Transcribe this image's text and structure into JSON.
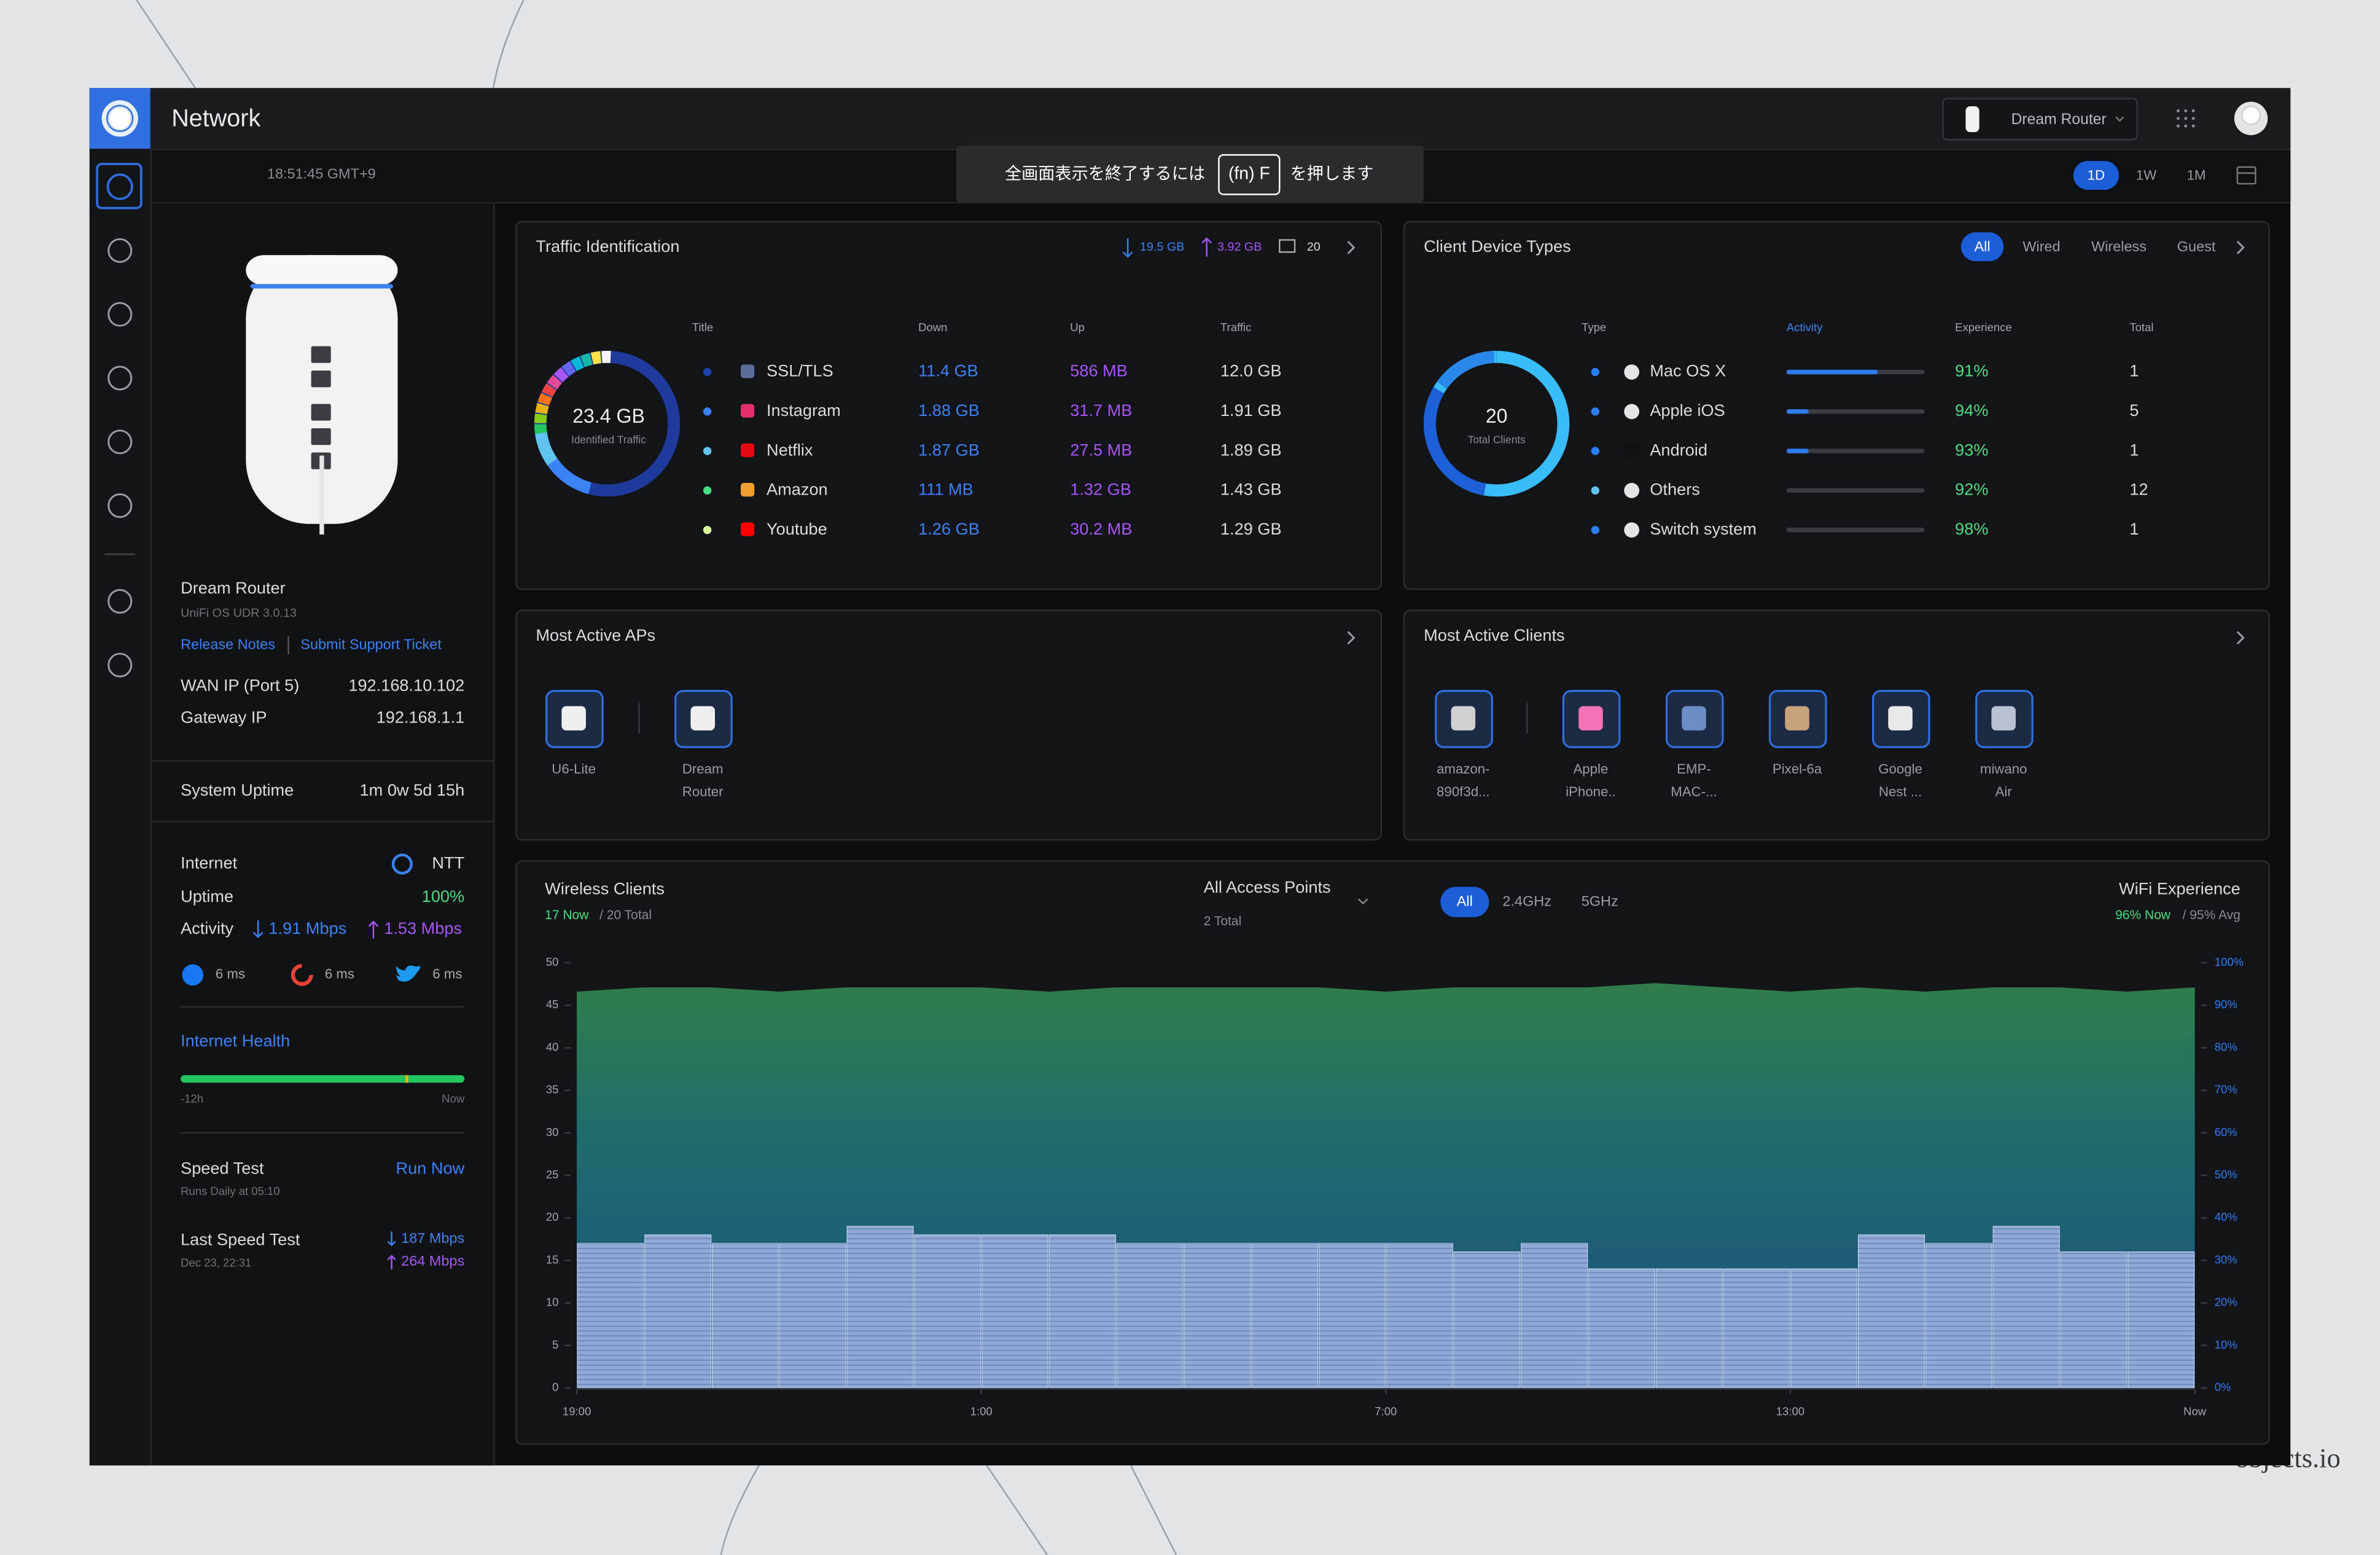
{
  "header": {
    "app_title": "Network",
    "device": "Dream Router",
    "clock": "18:51:45 GMT+9",
    "notice": {
      "before": "全画面表示を終了するには",
      "key": "(fn) F",
      "after": "を押します"
    },
    "ranges": [
      "1D",
      "1W",
      "1M"
    ]
  },
  "device": {
    "name": "Dream Router",
    "os": "UniFi OS UDR 3.0.13",
    "links": [
      "Release Notes",
      "Submit Support Ticket"
    ],
    "wan_label": "WAN IP (Port 5)",
    "wan_ip": "192.168.10.102",
    "gateway_label": "Gateway IP",
    "gateway_ip": "192.168.1.1",
    "uptime_label": "System Uptime",
    "uptime": "1m 0w 5d 15h"
  },
  "internet": {
    "label": "Internet",
    "isp": "NTT",
    "uptime_label": "Uptime",
    "uptime": "100%",
    "activity_label": "Activity",
    "down": "1.91 Mbps",
    "up": "1.53 Mbps",
    "latency": [
      "6 ms",
      "6 ms",
      "6 ms"
    ],
    "health_label": "Internet Health",
    "health_start": "-12h",
    "health_end": "Now",
    "speed_test_label": "Speed Test",
    "run_now": "Run Now",
    "schedule": "Runs Daily at 05:10",
    "last_label": "Last Speed Test",
    "last_date": "Dec 23, 22:31",
    "last_down": "187 Mbps",
    "last_up": "264 Mbps"
  },
  "traffic": {
    "title": "Traffic Identification",
    "down": "19.5 GB",
    "up": "3.92 GB",
    "clients": "20",
    "total": "23.4 GB",
    "total_label": "Identified Traffic",
    "columns": [
      "Title",
      "Down",
      "Up",
      "Traffic"
    ],
    "rows": [
      {
        "name": "SSL/TLS",
        "down": "11.4 GB",
        "up": "586 MB",
        "traffic": "12.0 GB"
      },
      {
        "name": "Instagram",
        "down": "1.88 GB",
        "up": "31.7 MB",
        "traffic": "1.91 GB"
      },
      {
        "name": "Netflix",
        "down": "1.87 GB",
        "up": "27.5 MB",
        "traffic": "1.89 GB"
      },
      {
        "name": "Amazon",
        "down": "111 MB",
        "up": "1.32 GB",
        "traffic": "1.43 GB"
      },
      {
        "name": "Youtube",
        "down": "1.26 GB",
        "up": "30.2 MB",
        "traffic": "1.29 GB"
      }
    ]
  },
  "client_types": {
    "title": "Client Device Types",
    "filters": [
      "All",
      "Wired",
      "Wireless",
      "Guest"
    ],
    "total": "20",
    "total_label": "Total Clients",
    "columns": [
      "Type",
      "Activity",
      "Experience",
      "Total"
    ],
    "rows": [
      {
        "name": "Mac OS X",
        "activity": 66,
        "experience": "91%",
        "total": "1"
      },
      {
        "name": "Apple iOS",
        "activity": 16,
        "experience": "94%",
        "total": "5"
      },
      {
        "name": "Android",
        "activity": 16,
        "experience": "93%",
        "total": "1"
      },
      {
        "name": "Others",
        "activity": 0,
        "experience": "92%",
        "total": "12"
      },
      {
        "name": "Switch system",
        "activity": 0,
        "experience": "98%",
        "total": "1"
      }
    ]
  },
  "aps": {
    "title": "Most Active APs",
    "items": [
      [
        "U6-Lite"
      ],
      [
        "Dream",
        "Router"
      ]
    ]
  },
  "clients": {
    "title": "Most Active Clients",
    "items": [
      [
        "amazon-",
        "890f3d..."
      ],
      [
        "Apple",
        "iPhone.."
      ],
      [
        "EMP-",
        "MAC-..."
      ],
      [
        "Pixel-6a"
      ],
      [
        "Google",
        "Nest ..."
      ],
      [
        "miwano",
        "Air"
      ]
    ]
  },
  "chart_data": {
    "type": "bar",
    "title": "Wireless Clients",
    "now": "17 Now",
    "total": "/ 20 Total",
    "ap_filter": "All Access Points",
    "ap_total": "2 Total",
    "bands": [
      "All",
      "2.4GHz",
      "5GHz"
    ],
    "experience_title": "WiFi Experience",
    "experience_now": "96% Now",
    "experience_avg": "/ 95% Avg",
    "xlim": [
      0,
      24
    ],
    "xticks": [
      {
        "value": 0,
        "label": "19:00"
      },
      {
        "value": 6,
        "label": "1:00"
      },
      {
        "value": 12,
        "label": "7:00"
      },
      {
        "value": 18,
        "label": "13:00"
      },
      {
        "value": 24,
        "label": "Now"
      }
    ],
    "ylim": [
      0,
      50
    ],
    "yticks": [
      0,
      5,
      10,
      15,
      20,
      25,
      30,
      35,
      40,
      45,
      50
    ],
    "y2lim": [
      0,
      100
    ],
    "y2ticks": [
      {
        "value": 0,
        "label": "0%"
      },
      {
        "value": 10,
        "label": "10%"
      },
      {
        "value": 20,
        "label": "20%"
      },
      {
        "value": 30,
        "label": "30%"
      },
      {
        "value": 40,
        "label": "40%"
      },
      {
        "value": 50,
        "label": "50%"
      },
      {
        "value": 60,
        "label": "60%"
      },
      {
        "value": 70,
        "label": "70%"
      },
      {
        "value": 80,
        "label": "80%"
      },
      {
        "value": 90,
        "label": "90%"
      },
      {
        "value": 100,
        "label": "100%"
      }
    ],
    "series": [
      {
        "color": "#8ea9d6",
        "values": [
          17,
          18,
          17,
          17,
          19,
          18,
          18,
          18,
          17,
          17,
          17,
          17,
          17,
          16,
          17,
          14,
          14,
          14,
          14,
          18,
          17,
          19,
          16,
          16
        ]
      },
      {
        "type": "area",
        "axis": "y2",
        "color": "#2f7d4b",
        "x": [
          0,
          1,
          2,
          3,
          4,
          5,
          6,
          7,
          8,
          9,
          10,
          11,
          12,
          13,
          14,
          15,
          16,
          17,
          18,
          19,
          20,
          21,
          22,
          23,
          24
        ],
        "values": [
          93,
          94,
          94,
          93,
          94,
          94,
          94,
          93,
          94,
          94,
          94,
          94,
          93,
          94,
          94,
          94,
          95,
          94,
          93,
          94,
          93,
          94,
          94,
          93,
          94
        ]
      }
    ]
  },
  "watermark": "objects.io"
}
